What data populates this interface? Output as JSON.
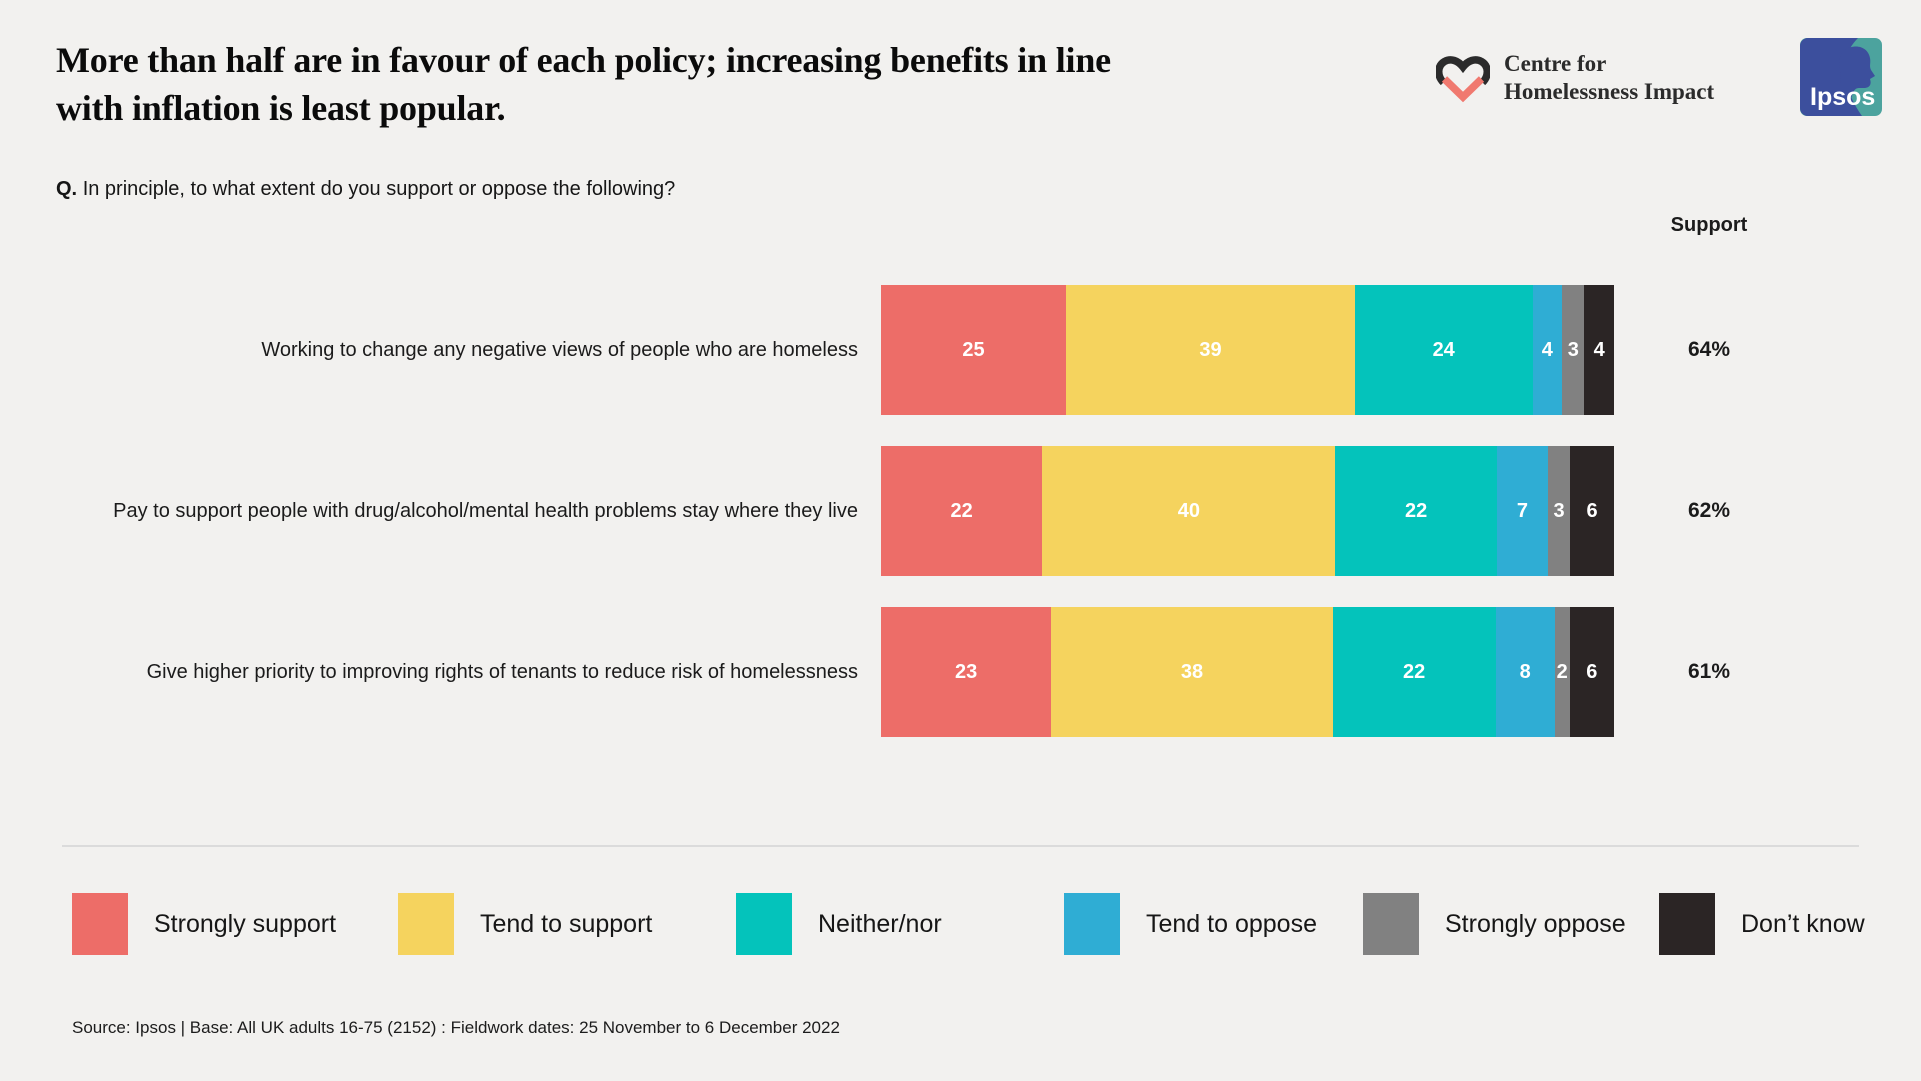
{
  "header": {
    "title_line1": "More than half are in favour of each policy; increasing benefits in line",
    "title_line2": "with inflation is least popular.",
    "question_prefix": "Q.",
    "question_text": "In principle, to what extent do you support or oppose the following?"
  },
  "logos": {
    "chi": {
      "line1": "Centre for",
      "line2": "Homelessness Impact"
    },
    "ipsos_wordmark": "Ipsos"
  },
  "chart_data": {
    "type": "bar",
    "stacked": true,
    "orientation": "horizontal",
    "unit": "percent",
    "x_range": [
      0,
      100
    ],
    "gridlines": false,
    "value_labels": "inside, white",
    "legend_position": "bottom",
    "categories": [
      "Working to change any negative views of people who are homeless",
      "Pay to support people with drug/alcohol/mental health problems stay where they live",
      "Give higher priority to improving rights of tenants to reduce risk of homelessness"
    ],
    "series": [
      {
        "name": "Strongly support",
        "color": "#ED6D68",
        "values": [
          25,
          22,
          23
        ]
      },
      {
        "name": "Tend to support",
        "color": "#F5D35E",
        "values": [
          39,
          40,
          38
        ]
      },
      {
        "name": "Neither/nor",
        "color": "#04C3BB",
        "values": [
          24,
          22,
          22
        ]
      },
      {
        "name": "Tend to oppose",
        "color": "#2FADD4",
        "values": [
          4,
          7,
          8
        ]
      },
      {
        "name": "Strongly oppose",
        "color": "#818181",
        "values": [
          3,
          3,
          2
        ]
      },
      {
        "name": "Don’t know",
        "color": "#2B2525",
        "values": [
          4,
          6,
          6
        ]
      }
    ],
    "support_column": {
      "header": "Support",
      "values": [
        "64%",
        "62%",
        "61%"
      ]
    }
  },
  "source": "Source: Ipsos | Base: All UK adults 16-75 (2152) : Fieldwork dates: 25 November to 6 December 2022",
  "colors": {
    "background": "#F2F1EF",
    "divider": "#DBDBDB",
    "title_text": "#0B0B0B",
    "bar_value_text": "#FFFFFF",
    "chi_heart_dark": "#2B2B2B",
    "chi_heart_coral": "#F0796F",
    "ipsos_blue": "#3C4F9D",
    "ipsos_teal": "#4CA39E"
  }
}
